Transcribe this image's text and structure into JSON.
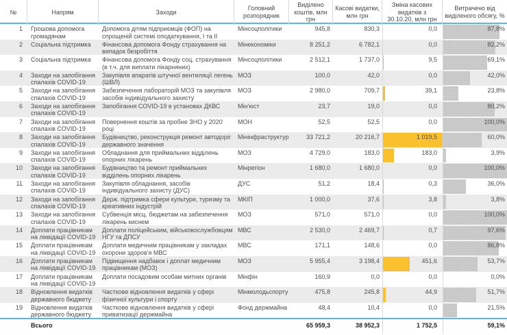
{
  "chart_data": {
    "type": "table",
    "columns": {
      "num": "№",
      "direction": "Напрям",
      "measures": "Заходи",
      "administrator": "Головний розпорядник",
      "allocated": "Виділено коштів, млн грн",
      "cash": "Касові видатки, млн грн",
      "change": "Зміна касових видатків з 30.10.20, млн грн",
      "spent": "Витрачено від виділеного обсягу, %"
    },
    "change_axis_max": 1019.5,
    "rows": [
      {
        "num": "1",
        "direction": "Грошова допомога громадянам",
        "measures": "Допомога дітям підприємців (ФОП) на спрощеній системі оподаткування, І та ІІ групи",
        "administrator": "Мінсоцполітики",
        "allocated": "945,8",
        "cash": "830,3",
        "change": "0,0",
        "spent": "87,8%",
        "allocated_value": 945.8,
        "cash_value": 830.3,
        "change_value": 0,
        "spent_value": 87.8
      },
      {
        "num": "2",
        "direction": "Соціальна підтримка",
        "measures": "Фінансова допомога Фонду страхування на випадок безробіття",
        "administrator": "Мінекономіки",
        "allocated": "8 251,2",
        "cash": "6 782,1",
        "change": "0,0",
        "spent": "82,2%",
        "allocated_value": 8251.2,
        "cash_value": 6782.1,
        "change_value": 0,
        "spent_value": 82.2
      },
      {
        "num": "3",
        "direction": "Соціальна підтримка",
        "measures": "Фінансова допомога Фонду соц. страхування (в т.ч. для виплати лікарняних)",
        "administrator": "Мінсоцполітики",
        "allocated": "2 512,1",
        "cash": "1 737,0",
        "change": "9,5",
        "spent": "69,1%",
        "allocated_value": 2512.1,
        "cash_value": 1737.0,
        "change_value": 9.5,
        "spent_value": 69.1
      },
      {
        "num": "4",
        "direction": "Заходи на запобігання спалахів COVID-19",
        "measures": "Закупівля апаратів штучної вентиляції легень (ШВЛ)",
        "administrator": "МОЗ",
        "allocated": "100,0",
        "cash": "42,0",
        "change": "0,0",
        "spent": "42,0%",
        "allocated_value": 100.0,
        "cash_value": 42.0,
        "change_value": 0,
        "spent_value": 42.0
      },
      {
        "num": "5",
        "direction": "Заходи на запобігання спалахів COVID-19",
        "measures": "Забезпечення лабораторій МОЗ та закупівля засобів індивідуального захисту",
        "administrator": "МОЗ",
        "allocated": "2 980,0",
        "cash": "709,7",
        "change": "39,1",
        "spent": "23,8%",
        "allocated_value": 2980.0,
        "cash_value": 709.7,
        "change_value": 39.1,
        "spent_value": 23.8
      },
      {
        "num": "6",
        "direction": "Заходи на запобігання спалахів COVID-19",
        "measures": "Запобігання COVID-19 в установах ДКВС",
        "administrator": "Мін'юст",
        "allocated": "23,7",
        "cash": "19,0",
        "change": "0,0",
        "spent": "80,2%",
        "allocated_value": 23.7,
        "cash_value": 19.0,
        "change_value": 0,
        "spent_value": 80.2
      },
      {
        "num": "7",
        "direction": "Заходи на запобігання спалахів COVID-19",
        "measures": "Повернення коштів за пробне ЗНО у 2020 році",
        "administrator": "МОН",
        "allocated": "52,5",
        "cash": "52,5",
        "change": "0,0",
        "spent": "100,0%",
        "allocated_value": 52.5,
        "cash_value": 52.5,
        "change_value": 0,
        "spent_value": 100.0
      },
      {
        "num": "8",
        "direction": "Заходи на запобігання спалахів COVID-19",
        "measures": "Будівництво, реконструкція ремонт автодоріг державного значення",
        "administrator": "Мінінфраструктури",
        "allocated": "33 721,2",
        "cash": "20 216,7",
        "change": "1 019,5",
        "spent": "60,0%",
        "allocated_value": 33721.2,
        "cash_value": 20216.7,
        "change_value": 1019.5,
        "spent_value": 60.0
      },
      {
        "num": "9",
        "direction": "Заходи на запобігання спалахів COVID-19",
        "measures": "Обладнання для приймальних відділень опорних лікарень",
        "administrator": "МОЗ",
        "allocated": "4 729,0",
        "cash": "183,0",
        "change": "183,0",
        "spent": "3,9%",
        "allocated_value": 4729.0,
        "cash_value": 183.0,
        "change_value": 183.0,
        "spent_value": 3.9
      },
      {
        "num": "10",
        "direction": "Заходи на запобігання спалахів COVID-19",
        "measures": "Будівництво та ремонт приймальних відділень опорних лікарень",
        "administrator": "Мінрегіон",
        "allocated": "1 680,0",
        "cash": "1 680,0",
        "change": "0,0",
        "spent": "100,0%",
        "allocated_value": 1680.0,
        "cash_value": 1680.0,
        "change_value": 0,
        "spent_value": 100.0
      },
      {
        "num": "11",
        "direction": "Заходи на запобігання спалахів COVID-19",
        "measures": "Закупівля обладнання, засобів індивідуального захисту (ДУС)",
        "administrator": "ДУС",
        "allocated": "51,2",
        "cash": "18,4",
        "change": "0,3",
        "spent": "36,0%",
        "allocated_value": 51.2,
        "cash_value": 18.4,
        "change_value": 0.3,
        "spent_value": 36.0
      },
      {
        "num": "12",
        "direction": "Заходи на запобігання спалахів COVID-19",
        "measures": "Держ. підтримка сфери культури, туризму та креативних індустрій",
        "administrator": "МКІП",
        "allocated": "1 000,0",
        "cash": "37,6",
        "change": "3,8",
        "spent": "3,8%",
        "allocated_value": 1000.0,
        "cash_value": 37.6,
        "change_value": 3.8,
        "spent_value": 3.8
      },
      {
        "num": "13",
        "direction": "Заходи на запобігання спалахів COVID-19",
        "measures": "Субвенція місц. бюджетам на забезпечення лікарень киснем",
        "administrator": "МОЗ",
        "allocated": "571,0",
        "cash": "571,0",
        "change": "0,0",
        "spent": "100,0%",
        "allocated_value": 571.0,
        "cash_value": 571.0,
        "change_value": 0,
        "spent_value": 100.0
      },
      {
        "num": "14",
        "direction": "Доплати працівникам на ліквідації COVID-19",
        "measures": "Доплати поліцейським, військовослужбовцям НГУ та ДПСУ",
        "administrator": "МВС",
        "allocated": "2 530,0",
        "cash": "2 469,7",
        "change": "0,7",
        "spent": "97,6%",
        "allocated_value": 2530.0,
        "cash_value": 2469.7,
        "change_value": 0.7,
        "spent_value": 97.6
      },
      {
        "num": "15",
        "direction": "Доплати працівникам на ліквідації COVID-19",
        "measures": "Доплати медичним працівникам у закладах охорони здоров'я МВС",
        "administrator": "МВС",
        "allocated": "171,1",
        "cash": "148,6",
        "change": "0,0",
        "spent": "86,8%",
        "allocated_value": 171.1,
        "cash_value": 148.6,
        "change_value": 0,
        "spent_value": 86.8
      },
      {
        "num": "16",
        "direction": "Доплати працівникам на ліквідації COVID-19",
        "measures": "Підвищення надбавок і доплат медичним працівникам (МОЗ)",
        "administrator": "МОЗ",
        "allocated": "5 955,4",
        "cash": "3 198,4",
        "change": "451,6",
        "spent": "53,7%",
        "allocated_value": 5955.4,
        "cash_value": 3198.4,
        "change_value": 451.6,
        "spent_value": 53.7
      },
      {
        "num": "17",
        "direction": "Доплати працівникам на ліквідації COVID-19",
        "measures": "Доплати посадовим особам митних органів",
        "administrator": "Мінфін",
        "allocated": "160,9",
        "cash": "0,0",
        "change": "0,0",
        "spent": "0,0%",
        "allocated_value": 160.9,
        "cash_value": 0.0,
        "change_value": 0,
        "spent_value": 0
      },
      {
        "num": "18",
        "direction": "Відновлення видатків державного бюджету",
        "measures": "Часткове відновлення видатків у сфері фізичної культури і спорту",
        "administrator": "Мінмолодьспорту",
        "allocated": "475,8",
        "cash": "245,8",
        "change": "44,9",
        "spent": "51,7%",
        "allocated_value": 475.8,
        "cash_value": 245.8,
        "change_value": 44.9,
        "spent_value": 51.7
      },
      {
        "num": "19",
        "direction": "Відновлення видатків державного бюджету",
        "measures": "Часткове відновлення видатків у сфері приватизації держмайна",
        "administrator": "Фонд держмайна",
        "allocated": "48,4",
        "cash": "10,4",
        "change": "0,0",
        "spent": "21,5%",
        "allocated_value": 48.4,
        "cash_value": 10.4,
        "change_value": 0,
        "spent_value": 21.5
      }
    ],
    "total": {
      "label": "Всього",
      "allocated": "65 959,3",
      "cash": "38 952,3",
      "change": "1 752,5",
      "spent": "59,1%"
    }
  },
  "colors": {
    "change_bar": "#FBC02D",
    "spent_bar": "#CBCBCB",
    "header_rule": "#55B8E6",
    "alt_row_bg": "#EBEBEB"
  }
}
